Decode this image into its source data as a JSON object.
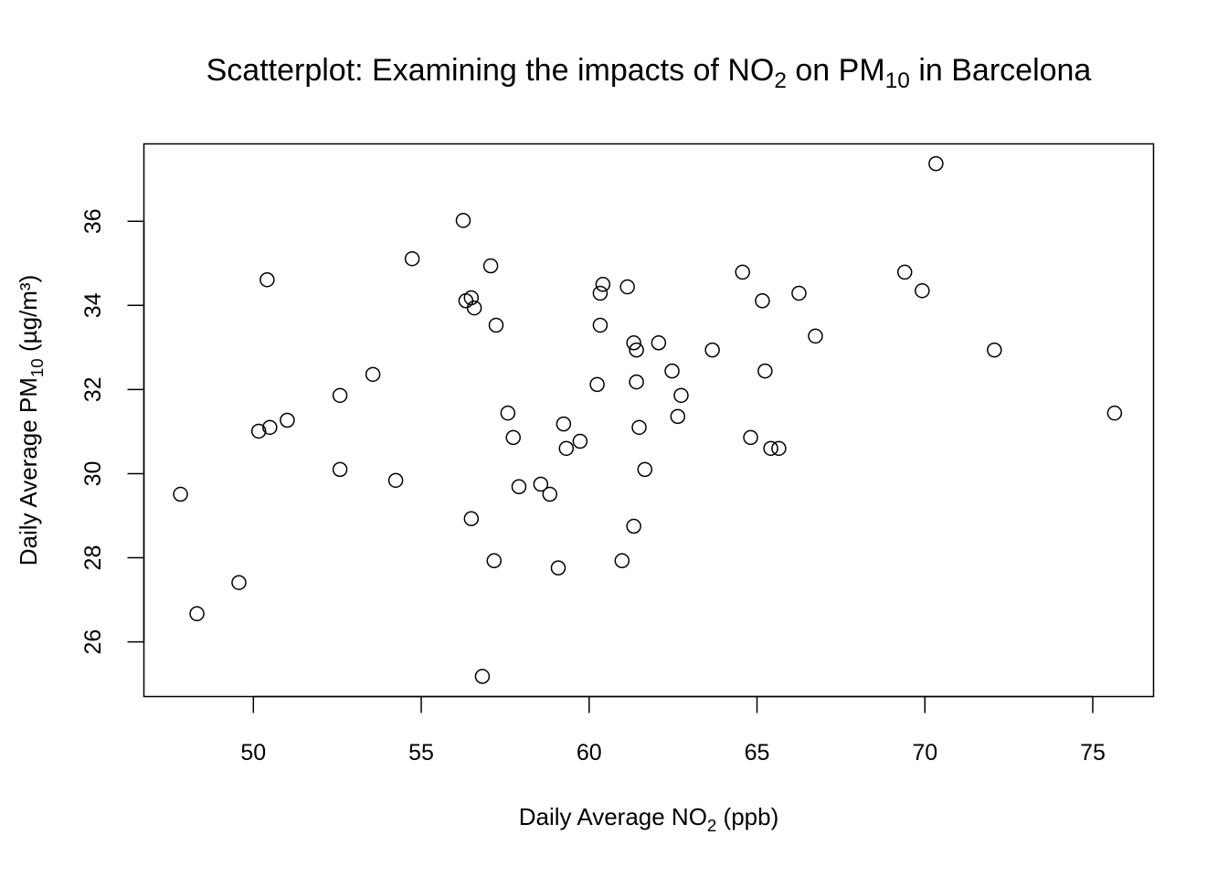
{
  "chart_data": {
    "type": "scatter",
    "title_parts": [
      "Scatterplot: Examining the impacts of NO",
      "2",
      " on PM",
      "10",
      " in Barcelona"
    ],
    "xlabel_parts": [
      "Daily Average NO",
      "2",
      " (ppb)"
    ],
    "ylabel_parts": [
      "Daily Average PM",
      "10",
      " (µg/m³)"
    ],
    "xlim": [
      46.74,
      76.81
    ],
    "ylim": [
      24.7,
      37.84
    ],
    "xticks": [
      50,
      55,
      60,
      65,
      70,
      75
    ],
    "yticks": [
      26,
      28,
      30,
      32,
      34,
      36
    ],
    "grid": false,
    "marker": "open-circle",
    "points": [
      [
        47.83,
        29.51
      ],
      [
        48.32,
        26.67
      ],
      [
        49.57,
        27.41
      ],
      [
        50.16,
        31.01
      ],
      [
        50.49,
        31.1
      ],
      [
        50.41,
        34.61
      ],
      [
        51.01,
        31.27
      ],
      [
        52.58,
        31.86
      ],
      [
        52.58,
        30.1
      ],
      [
        53.56,
        32.36
      ],
      [
        54.24,
        29.84
      ],
      [
        54.73,
        35.11
      ],
      [
        56.25,
        36.02
      ],
      [
        56.33,
        34.11
      ],
      [
        56.49,
        34.18
      ],
      [
        56.58,
        33.94
      ],
      [
        56.49,
        28.93
      ],
      [
        56.82,
        25.18
      ],
      [
        57.07,
        34.94
      ],
      [
        57.17,
        27.93
      ],
      [
        57.23,
        33.53
      ],
      [
        57.58,
        31.44
      ],
      [
        57.74,
        30.86
      ],
      [
        57.91,
        29.69
      ],
      [
        58.56,
        29.75
      ],
      [
        58.83,
        29.51
      ],
      [
        59.08,
        27.76
      ],
      [
        59.24,
        31.18
      ],
      [
        59.32,
        30.6
      ],
      [
        59.73,
        30.77
      ],
      [
        60.24,
        32.12
      ],
      [
        60.33,
        34.29
      ],
      [
        60.33,
        33.53
      ],
      [
        60.41,
        34.5
      ],
      [
        60.98,
        27.93
      ],
      [
        61.14,
        34.44
      ],
      [
        61.33,
        33.11
      ],
      [
        61.41,
        32.94
      ],
      [
        61.41,
        32.18
      ],
      [
        61.33,
        28.75
      ],
      [
        61.49,
        31.1
      ],
      [
        61.66,
        30.1
      ],
      [
        62.07,
        33.11
      ],
      [
        62.47,
        32.44
      ],
      [
        62.64,
        31.36
      ],
      [
        62.74,
        31.86
      ],
      [
        63.67,
        32.94
      ],
      [
        64.57,
        34.79
      ],
      [
        64.81,
        30.86
      ],
      [
        65.16,
        34.11
      ],
      [
        65.24,
        32.44
      ],
      [
        65.41,
        30.6
      ],
      [
        65.65,
        30.6
      ],
      [
        66.25,
        34.29
      ],
      [
        66.74,
        33.27
      ],
      [
        69.4,
        34.79
      ],
      [
        69.92,
        34.35
      ],
      [
        70.33,
        37.37
      ],
      [
        72.07,
        32.94
      ],
      [
        75.65,
        31.44
      ]
    ]
  }
}
